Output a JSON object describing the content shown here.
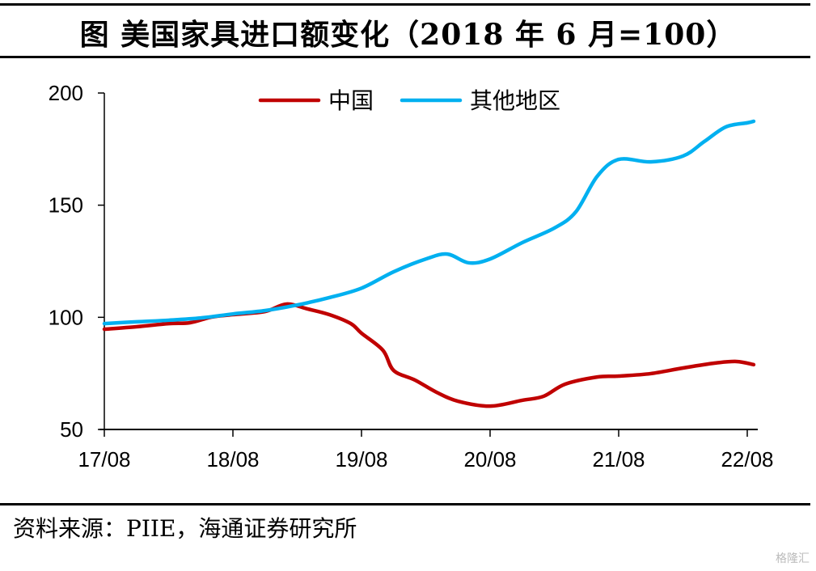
{
  "title": "图 美国家具进口额变化（2018 年 6 月=100）",
  "source": "资料来源：PIIE，海通证券研究所",
  "watermark": "格隆汇",
  "chart_data": {
    "type": "line",
    "title": "美国家具进口额变化（2018年6月=100）",
    "xlabel": "",
    "ylabel": "",
    "ylim": [
      50,
      200
    ],
    "yticks": [
      50,
      100,
      150,
      200
    ],
    "xlim_months": [
      0,
      61
    ],
    "xticks": [
      {
        "label": "17/08",
        "month": 0
      },
      {
        "label": "18/08",
        "month": 12
      },
      {
        "label": "19/08",
        "month": 24
      },
      {
        "label": "20/08",
        "month": 36
      },
      {
        "label": "21/08",
        "month": 48
      },
      {
        "label": "22/08",
        "month": 60
      }
    ],
    "grid": false,
    "legend": {
      "position": "top-center"
    },
    "series": [
      {
        "name": "中国",
        "color": "#C00000",
        "points": [
          [
            0,
            94.7
          ],
          [
            3,
            95.8
          ],
          [
            6,
            97.2
          ],
          [
            8,
            97.6
          ],
          [
            10,
            100.1
          ],
          [
            12,
            101.2
          ],
          [
            15,
            102.6
          ],
          [
            17,
            105.9
          ],
          [
            19,
            103.7
          ],
          [
            21,
            101.2
          ],
          [
            23,
            97.2
          ],
          [
            24,
            92.9
          ],
          [
            26,
            85.3
          ],
          [
            27,
            76.3
          ],
          [
            29,
            72.0
          ],
          [
            31,
            66.6
          ],
          [
            33,
            62.6
          ],
          [
            36,
            60.4
          ],
          [
            39,
            63.0
          ],
          [
            41,
            64.8
          ],
          [
            43,
            70.2
          ],
          [
            46,
            73.4
          ],
          [
            48,
            73.8
          ],
          [
            51,
            74.9
          ],
          [
            54,
            77.4
          ],
          [
            57,
            79.6
          ],
          [
            59,
            80.3
          ],
          [
            60.6,
            78.9
          ]
        ]
      },
      {
        "name": "其他地区",
        "color": "#00B0F0",
        "points": [
          [
            0,
            97.2
          ],
          [
            3,
            98.0
          ],
          [
            6,
            98.7
          ],
          [
            9,
            99.7
          ],
          [
            12,
            101.5
          ],
          [
            15,
            103.0
          ],
          [
            18,
            105.5
          ],
          [
            21,
            108.8
          ],
          [
            24,
            113.0
          ],
          [
            27,
            120.3
          ],
          [
            30,
            126.0
          ],
          [
            32,
            128.2
          ],
          [
            34,
            124.3
          ],
          [
            36,
            126.0
          ],
          [
            39,
            133.3
          ],
          [
            42,
            139.8
          ],
          [
            44,
            147.0
          ],
          [
            46,
            162.9
          ],
          [
            48,
            170.4
          ],
          [
            51,
            169.3
          ],
          [
            54,
            171.9
          ],
          [
            56,
            178.4
          ],
          [
            58,
            184.9
          ],
          [
            60,
            186.7
          ],
          [
            60.6,
            187.4
          ]
        ]
      }
    ]
  }
}
